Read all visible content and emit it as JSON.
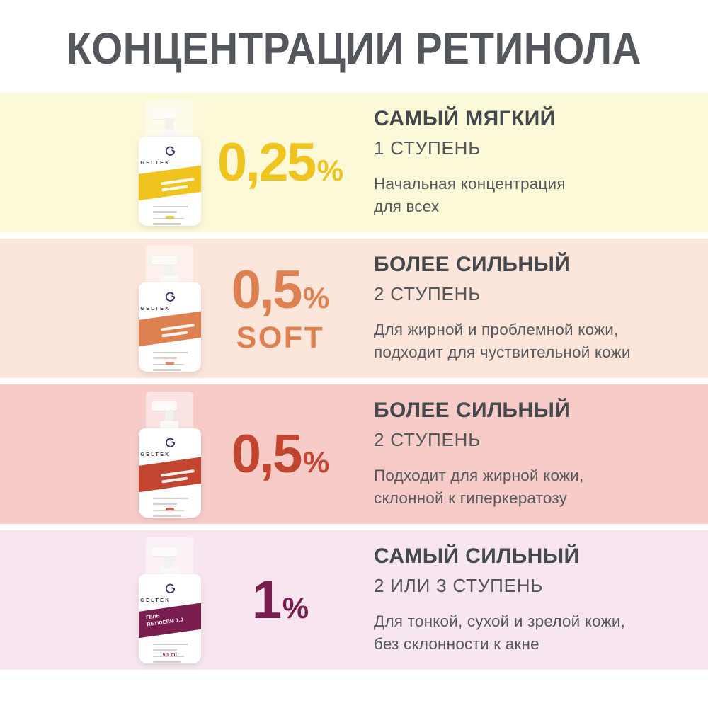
{
  "title": "КОНЦЕНТРАЦИИ РЕТИНОЛА",
  "colors": {
    "title_text": "#54575c",
    "heading_text": "#45484d",
    "body_text": "#55585d",
    "page_background": "#ffffff"
  },
  "rows": [
    {
      "percent": {
        "value": "0,25",
        "symbol": "%",
        "suffix": ""
      },
      "heading": "САМЫЙ МЯГКИЙ",
      "step": "1 СТУПЕНЬ",
      "description": "Начальная концентрация\nдля всех",
      "bottle": {
        "brand": "GELTEK",
        "label": "",
        "volume": ""
      },
      "colors": {
        "background": "#fcf9d9",
        "accent": "#efc41f"
      }
    },
    {
      "percent": {
        "value": "0,5",
        "symbol": "%",
        "suffix": "SOFT"
      },
      "heading": "БОЛЕЕ СИЛЬНЫЙ",
      "step": "2 СТУПЕНЬ",
      "description": "Для жирной и проблемной кожи,\nподходит для чуствительной кожи",
      "bottle": {
        "brand": "GELTEK",
        "label": "",
        "volume": ""
      },
      "colors": {
        "background": "#fce5db",
        "accent": "#de8150"
      }
    },
    {
      "percent": {
        "value": "0,5",
        "symbol": "%",
        "suffix": ""
      },
      "heading": "БОЛЕЕ СИЛЬНЫЙ",
      "step": "2 СТУПЕНЬ",
      "description": "Подходит для жирной кожи,\nсклонной к гиперкератозу",
      "bottle": {
        "brand": "GELTEK",
        "label": "",
        "volume": ""
      },
      "colors": {
        "background": "#f7ccc8",
        "accent": "#c2452f"
      }
    },
    {
      "percent": {
        "value": "1",
        "symbol": "%",
        "suffix": ""
      },
      "heading": "САМЫЙ СИЛЬНЫЙ",
      "step": "2 ИЛИ 3 СТУПЕНЬ",
      "description": "Для тонкой, сухой и зрелой кожи,\nбез склонности к акне",
      "bottle": {
        "brand": "GELTEK",
        "label": "ГЕЛЬ\nRETIDERM 1.0",
        "volume": "50 ml"
      },
      "colors": {
        "background": "#f7e6f0",
        "accent": "#7a1e4f"
      }
    }
  ]
}
